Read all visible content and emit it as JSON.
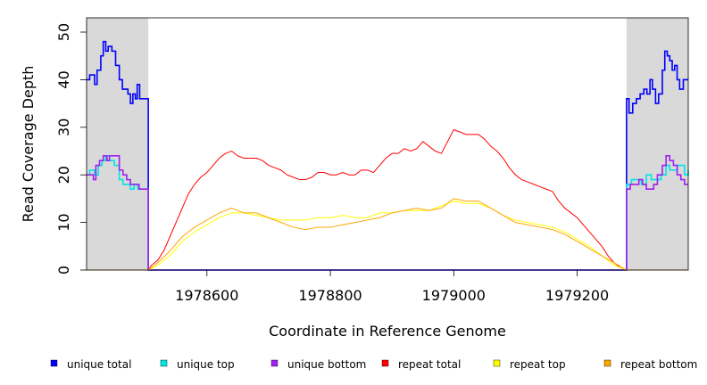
{
  "chart_data": {
    "type": "line",
    "title": "",
    "xlabel": "Coordinate in Reference Genome",
    "ylabel": "Read Coverage Depth",
    "xlim": [
      1978405,
      1979380
    ],
    "ylim": [
      0,
      53
    ],
    "x_ticks": [
      1978600,
      1978800,
      1979000,
      1979200
    ],
    "x_tick_labels": [
      "1978600",
      "1978800",
      "1979000",
      "1979200"
    ],
    "y_ticks": [
      0,
      10,
      20,
      30,
      40,
      50
    ],
    "y_tick_labels": [
      "0",
      "10",
      "20",
      "30",
      "40",
      "50"
    ],
    "grid": false,
    "legend_position": "bottom",
    "shaded_regions": [
      {
        "x": [
          1978405,
          1978505
        ],
        "color": "#d9d9d9"
      },
      {
        "x": [
          1979280,
          1979380
        ],
        "color": "#d9d9d9"
      }
    ],
    "series": [
      {
        "name": "unique total",
        "color": "#0000ff",
        "step": true,
        "points": [
          [
            1978405,
            40
          ],
          [
            1978410,
            41
          ],
          [
            1978418,
            39
          ],
          [
            1978422,
            42
          ],
          [
            1978428,
            45
          ],
          [
            1978432,
            48
          ],
          [
            1978436,
            46
          ],
          [
            1978440,
            47
          ],
          [
            1978446,
            46
          ],
          [
            1978452,
            43
          ],
          [
            1978458,
            40
          ],
          [
            1978463,
            38
          ],
          [
            1978468,
            38
          ],
          [
            1978472,
            37
          ],
          [
            1978476,
            35
          ],
          [
            1978480,
            37
          ],
          [
            1978484,
            36
          ],
          [
            1978487,
            39
          ],
          [
            1978491,
            36
          ],
          [
            1978496,
            36
          ],
          [
            1978500,
            36
          ],
          [
            1978505,
            0
          ],
          [
            1979280,
            0
          ],
          [
            1979280,
            36
          ],
          [
            1979284,
            33
          ],
          [
            1979290,
            35
          ],
          [
            1979296,
            36
          ],
          [
            1979302,
            37
          ],
          [
            1979308,
            38
          ],
          [
            1979313,
            37
          ],
          [
            1979318,
            40
          ],
          [
            1979322,
            38
          ],
          [
            1979327,
            35
          ],
          [
            1979332,
            37
          ],
          [
            1979338,
            42
          ],
          [
            1979342,
            46
          ],
          [
            1979346,
            45
          ],
          [
            1979350,
            44
          ],
          [
            1979354,
            42
          ],
          [
            1979358,
            43
          ],
          [
            1979362,
            40
          ],
          [
            1979366,
            38
          ],
          [
            1979372,
            40
          ],
          [
            1979380,
            40
          ]
        ]
      },
      {
        "name": "unique top",
        "color": "#00e5e5",
        "step": true,
        "points": [
          [
            1978405,
            20
          ],
          [
            1978410,
            21
          ],
          [
            1978418,
            20
          ],
          [
            1978424,
            22
          ],
          [
            1978430,
            23
          ],
          [
            1978436,
            24
          ],
          [
            1978442,
            23
          ],
          [
            1978450,
            22
          ],
          [
            1978458,
            19
          ],
          [
            1978464,
            18
          ],
          [
            1978470,
            18
          ],
          [
            1978476,
            17
          ],
          [
            1978482,
            18
          ],
          [
            1978488,
            17
          ],
          [
            1978496,
            17
          ],
          [
            1978505,
            0
          ],
          [
            1979280,
            0
          ],
          [
            1979280,
            18
          ],
          [
            1979288,
            19
          ],
          [
            1979296,
            19
          ],
          [
            1979304,
            18
          ],
          [
            1979312,
            20
          ],
          [
            1979320,
            19
          ],
          [
            1979328,
            19
          ],
          [
            1979336,
            20
          ],
          [
            1979344,
            22
          ],
          [
            1979350,
            21
          ],
          [
            1979356,
            21
          ],
          [
            1979362,
            22
          ],
          [
            1979368,
            22
          ],
          [
            1979374,
            20
          ],
          [
            1979380,
            21
          ]
        ]
      },
      {
        "name": "unique bottom",
        "color": "#a020f0",
        "step": true,
        "points": [
          [
            1978405,
            20
          ],
          [
            1978410,
            20
          ],
          [
            1978416,
            19
          ],
          [
            1978420,
            22
          ],
          [
            1978426,
            23
          ],
          [
            1978432,
            24
          ],
          [
            1978438,
            23
          ],
          [
            1978442,
            24
          ],
          [
            1978452,
            24
          ],
          [
            1978458,
            21
          ],
          [
            1978464,
            20
          ],
          [
            1978470,
            19
          ],
          [
            1978476,
            18
          ],
          [
            1978482,
            18
          ],
          [
            1978490,
            17
          ],
          [
            1978505,
            0
          ],
          [
            1979280,
            0
          ],
          [
            1979280,
            17
          ],
          [
            1979286,
            18
          ],
          [
            1979292,
            18
          ],
          [
            1979300,
            19
          ],
          [
            1979306,
            18
          ],
          [
            1979312,
            17
          ],
          [
            1979318,
            17
          ],
          [
            1979324,
            18
          ],
          [
            1979330,
            20
          ],
          [
            1979338,
            22
          ],
          [
            1979344,
            24
          ],
          [
            1979350,
            23
          ],
          [
            1979356,
            22
          ],
          [
            1979362,
            20
          ],
          [
            1979368,
            19
          ],
          [
            1979374,
            18
          ],
          [
            1979380,
            18
          ]
        ]
      },
      {
        "name": "repeat total",
        "color": "#ff0000",
        "step": false,
        "points": [
          [
            1978505,
            0
          ],
          [
            1978510,
            1
          ],
          [
            1978520,
            2
          ],
          [
            1978530,
            4
          ],
          [
            1978540,
            7
          ],
          [
            1978550,
            10
          ],
          [
            1978560,
            13
          ],
          [
            1978570,
            16
          ],
          [
            1978580,
            18
          ],
          [
            1978590,
            19.5
          ],
          [
            1978600,
            20.5
          ],
          [
            1978610,
            22
          ],
          [
            1978620,
            23.5
          ],
          [
            1978630,
            24.5
          ],
          [
            1978640,
            25
          ],
          [
            1978650,
            24
          ],
          [
            1978660,
            23.5
          ],
          [
            1978670,
            23.5
          ],
          [
            1978680,
            23.5
          ],
          [
            1978690,
            23
          ],
          [
            1978700,
            22
          ],
          [
            1978710,
            21.5
          ],
          [
            1978720,
            21
          ],
          [
            1978730,
            20
          ],
          [
            1978740,
            19.5
          ],
          [
            1978750,
            19
          ],
          [
            1978760,
            19
          ],
          [
            1978770,
            19.5
          ],
          [
            1978780,
            20.5
          ],
          [
            1978790,
            20.5
          ],
          [
            1978800,
            20
          ],
          [
            1978810,
            20
          ],
          [
            1978820,
            20.5
          ],
          [
            1978830,
            20
          ],
          [
            1978840,
            20
          ],
          [
            1978850,
            21
          ],
          [
            1978860,
            21
          ],
          [
            1978870,
            20.5
          ],
          [
            1978880,
            22
          ],
          [
            1978890,
            23.5
          ],
          [
            1978900,
            24.5
          ],
          [
            1978910,
            24.5
          ],
          [
            1978920,
            25.5
          ],
          [
            1978930,
            25
          ],
          [
            1978940,
            25.5
          ],
          [
            1978950,
            27
          ],
          [
            1978960,
            26
          ],
          [
            1978970,
            25
          ],
          [
            1978980,
            24.5
          ],
          [
            1978990,
            27
          ],
          [
            1979000,
            29.5
          ],
          [
            1979010,
            29
          ],
          [
            1979020,
            28.5
          ],
          [
            1979030,
            28.5
          ],
          [
            1979040,
            28.5
          ],
          [
            1979050,
            27.5
          ],
          [
            1979060,
            26
          ],
          [
            1979070,
            25
          ],
          [
            1979080,
            23.5
          ],
          [
            1979090,
            21.5
          ],
          [
            1979100,
            20
          ],
          [
            1979110,
            19
          ],
          [
            1979120,
            18.5
          ],
          [
            1979130,
            18
          ],
          [
            1979140,
            17.5
          ],
          [
            1979150,
            17
          ],
          [
            1979160,
            16.5
          ],
          [
            1979170,
            14.5
          ],
          [
            1979180,
            13
          ],
          [
            1979190,
            12
          ],
          [
            1979200,
            11
          ],
          [
            1979210,
            9.5
          ],
          [
            1979220,
            8
          ],
          [
            1979230,
            6.5
          ],
          [
            1979240,
            5
          ],
          [
            1979250,
            3
          ],
          [
            1979260,
            1.5
          ],
          [
            1979270,
            0.5
          ],
          [
            1979280,
            0
          ]
        ]
      },
      {
        "name": "repeat top",
        "color": "#ffff00",
        "step": false,
        "points": [
          [
            1978505,
            0
          ],
          [
            1978520,
            1
          ],
          [
            1978540,
            3
          ],
          [
            1978560,
            6
          ],
          [
            1978580,
            8
          ],
          [
            1978600,
            9.5
          ],
          [
            1978620,
            11
          ],
          [
            1978640,
            12
          ],
          [
            1978660,
            12
          ],
          [
            1978680,
            11.5
          ],
          [
            1978700,
            11
          ],
          [
            1978720,
            10.5
          ],
          [
            1978740,
            10.5
          ],
          [
            1978760,
            10.5
          ],
          [
            1978780,
            11
          ],
          [
            1978800,
            11
          ],
          [
            1978820,
            11.5
          ],
          [
            1978840,
            11
          ],
          [
            1978860,
            11
          ],
          [
            1978880,
            12
          ],
          [
            1978900,
            12
          ],
          [
            1978920,
            12.5
          ],
          [
            1978940,
            12.5
          ],
          [
            1978960,
            12.5
          ],
          [
            1978980,
            13.5
          ],
          [
            1979000,
            14.5
          ],
          [
            1979020,
            14
          ],
          [
            1979040,
            14
          ],
          [
            1979060,
            13
          ],
          [
            1979080,
            11.5
          ],
          [
            1979100,
            10.5
          ],
          [
            1979120,
            10
          ],
          [
            1979140,
            9.5
          ],
          [
            1979160,
            9
          ],
          [
            1979180,
            8
          ],
          [
            1979200,
            6.5
          ],
          [
            1979220,
            5
          ],
          [
            1979240,
            3
          ],
          [
            1979260,
            1
          ],
          [
            1979280,
            0
          ]
        ]
      },
      {
        "name": "repeat bottom",
        "color": "#ffa500",
        "step": false,
        "points": [
          [
            1978405,
            0
          ],
          [
            1978505,
            0
          ],
          [
            1978520,
            1.5
          ],
          [
            1978540,
            4
          ],
          [
            1978560,
            7
          ],
          [
            1978580,
            9
          ],
          [
            1978600,
            10.5
          ],
          [
            1978620,
            12
          ],
          [
            1978640,
            13
          ],
          [
            1978660,
            12
          ],
          [
            1978680,
            12
          ],
          [
            1978700,
            11
          ],
          [
            1978720,
            10
          ],
          [
            1978740,
            9
          ],
          [
            1978760,
            8.5
          ],
          [
            1978780,
            9
          ],
          [
            1978800,
            9
          ],
          [
            1978820,
            9.5
          ],
          [
            1978840,
            10
          ],
          [
            1978860,
            10.5
          ],
          [
            1978880,
            11
          ],
          [
            1978900,
            12
          ],
          [
            1978920,
            12.5
          ],
          [
            1978940,
            13
          ],
          [
            1978960,
            12.5
          ],
          [
            1978980,
            13
          ],
          [
            1979000,
            15
          ],
          [
            1979020,
            14.5
          ],
          [
            1979040,
            14.5
          ],
          [
            1979060,
            13
          ],
          [
            1979080,
            11.5
          ],
          [
            1979100,
            10
          ],
          [
            1979120,
            9.5
          ],
          [
            1979140,
            9
          ],
          [
            1979160,
            8.5
          ],
          [
            1979180,
            7.5
          ],
          [
            1979200,
            6
          ],
          [
            1979220,
            4.5
          ],
          [
            1979240,
            3
          ],
          [
            1979260,
            1.5
          ],
          [
            1979280,
            0
          ],
          [
            1979380,
            0
          ]
        ]
      }
    ]
  }
}
